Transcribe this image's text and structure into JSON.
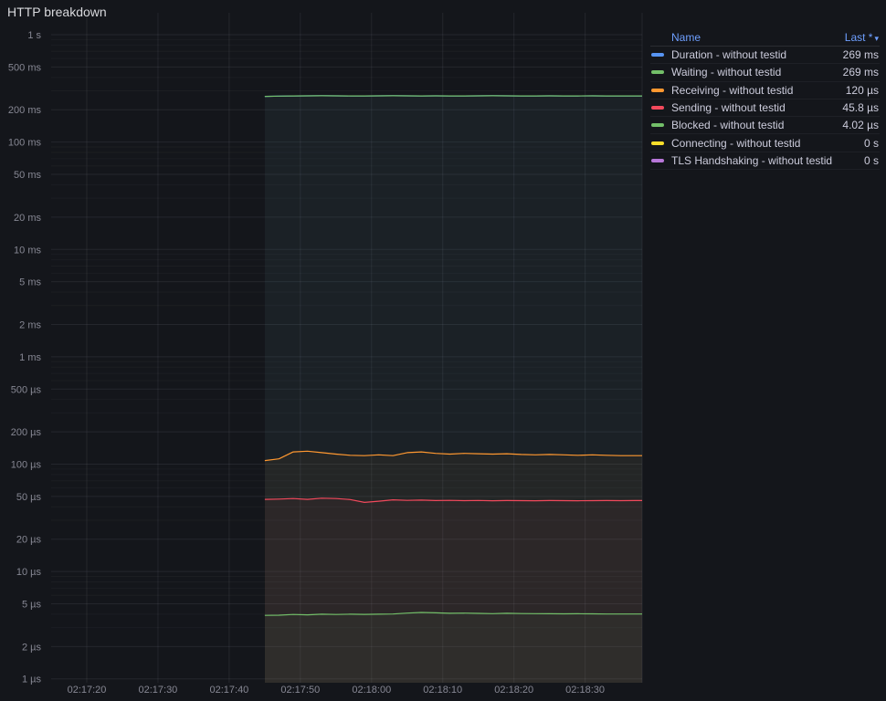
{
  "panel": {
    "title": "HTTP breakdown"
  },
  "icons": {
    "sort_caret": "▾"
  },
  "legend": {
    "columns": {
      "name": "Name",
      "sort": "Last *"
    }
  },
  "chart_data": {
    "type": "line",
    "title": "HTTP breakdown",
    "y_scale": "log10",
    "xlim": [
      0,
      83
    ],
    "ylim": [
      9.2e-07,
      1.6
    ],
    "grid": true,
    "legend_position": "right-table",
    "x_ticks": [
      {
        "t": 5,
        "label": "02:17:20"
      },
      {
        "t": 15,
        "label": "02:17:30"
      },
      {
        "t": 25,
        "label": "02:17:40"
      },
      {
        "t": 35,
        "label": "02:17:50"
      },
      {
        "t": 45,
        "label": "02:18:00"
      },
      {
        "t": 55,
        "label": "02:18:10"
      },
      {
        "t": 65,
        "label": "02:18:20"
      },
      {
        "t": 75,
        "label": "02:18:30"
      }
    ],
    "y_ticks": [
      {
        "v": 1,
        "label": "1 s"
      },
      {
        "v": 0.5,
        "label": "500 ms"
      },
      {
        "v": 0.2,
        "label": "200 ms"
      },
      {
        "v": 0.1,
        "label": "100 ms"
      },
      {
        "v": 0.05,
        "label": "50 ms"
      },
      {
        "v": 0.02,
        "label": "20 ms"
      },
      {
        "v": 0.01,
        "label": "10 ms"
      },
      {
        "v": 0.005,
        "label": "5 ms"
      },
      {
        "v": 0.002,
        "label": "2 ms"
      },
      {
        "v": 0.001,
        "label": "1 ms"
      },
      {
        "v": 0.0005,
        "label": "500 µs"
      },
      {
        "v": 0.0002,
        "label": "200 µs"
      },
      {
        "v": 0.0001,
        "label": "100 µs"
      },
      {
        "v": 5e-05,
        "label": "50 µs"
      },
      {
        "v": 2e-05,
        "label": "20 µs"
      },
      {
        "v": 1e-05,
        "label": "10 µs"
      },
      {
        "v": 5e-06,
        "label": "5 µs"
      },
      {
        "v": 2e-06,
        "label": "2 µs"
      },
      {
        "v": 1e-06,
        "label": "1 µs"
      }
    ],
    "x": [
      30,
      32,
      34,
      36,
      38,
      40,
      42,
      44,
      46,
      48,
      50,
      52,
      54,
      56,
      58,
      60,
      62,
      64,
      66,
      68,
      70,
      72,
      74,
      76,
      78,
      80,
      82,
      83
    ],
    "series": [
      {
        "name": "Duration - without testid",
        "color": "#5794F2",
        "last": "269 ms",
        "values": [
          0.2665,
          0.268,
          0.269,
          0.2695,
          0.27,
          0.2695,
          0.269,
          0.269,
          0.2695,
          0.27,
          0.2695,
          0.269,
          0.2695,
          0.269,
          0.269,
          0.2695,
          0.27,
          0.2695,
          0.269,
          0.269,
          0.2695,
          0.269,
          0.269,
          0.2695,
          0.269,
          0.269,
          0.269,
          0.269
        ]
      },
      {
        "name": "Waiting - without testid",
        "color": "#73BF69",
        "last": "269 ms",
        "values": [
          0.2665,
          0.268,
          0.269,
          0.2695,
          0.27,
          0.2695,
          0.269,
          0.269,
          0.2695,
          0.27,
          0.2695,
          0.269,
          0.2695,
          0.269,
          0.269,
          0.2695,
          0.27,
          0.2695,
          0.269,
          0.269,
          0.2695,
          0.269,
          0.269,
          0.2695,
          0.269,
          0.269,
          0.269,
          0.269
        ]
      },
      {
        "name": "Receiving - without testid",
        "color": "#FF9830",
        "last": "120 µs",
        "values": [
          0.000108,
          0.000112,
          0.00013,
          0.000132,
          0.000128,
          0.000124,
          0.000121,
          0.00012,
          0.000122,
          0.00012,
          0.000128,
          0.00013,
          0.000126,
          0.000124,
          0.000126,
          0.000125,
          0.000124,
          0.000125,
          0.000123,
          0.000122,
          0.000123,
          0.000122,
          0.000121,
          0.000122,
          0.000121,
          0.00012,
          0.00012,
          0.00012
        ]
      },
      {
        "name": "Sending - without testid",
        "color": "#F2495C",
        "last": "45.8 µs",
        "values": [
          4.7e-05,
          4.72e-05,
          4.78e-05,
          4.7e-05,
          4.82e-05,
          4.78e-05,
          4.68e-05,
          4.4e-05,
          4.52e-05,
          4.65e-05,
          4.6e-05,
          4.62e-05,
          4.58e-05,
          4.6e-05,
          4.57e-05,
          4.59e-05,
          4.56e-05,
          4.58e-05,
          4.57e-05,
          4.56e-05,
          4.58e-05,
          4.57e-05,
          4.56e-05,
          4.57e-05,
          4.58e-05,
          4.57e-05,
          4.58e-05,
          4.58e-05
        ]
      },
      {
        "name": "Blocked - without testid",
        "color": "#73BF69",
        "last": "4.02 µs",
        "values": [
          3.9e-06,
          3.92e-06,
          3.98e-06,
          3.95e-06,
          4e-06,
          3.98e-06,
          4e-06,
          3.99e-06,
          4e-06,
          4.02e-06,
          4.1e-06,
          4.15e-06,
          4.12e-06,
          4.08e-06,
          4.1e-06,
          4.07e-06,
          4.05e-06,
          4.08e-06,
          4.06e-06,
          4.05e-06,
          4.04e-06,
          4.03e-06,
          4.04e-06,
          4.03e-06,
          4.02e-06,
          4.02e-06,
          4.02e-06,
          4.02e-06
        ]
      },
      {
        "name": "Connecting - without testid",
        "color": "#FADE2A",
        "last": "0 s",
        "values": []
      },
      {
        "name": "TLS Handshaking - without testid",
        "color": "#B877D9",
        "last": "0 s",
        "values": []
      }
    ]
  }
}
